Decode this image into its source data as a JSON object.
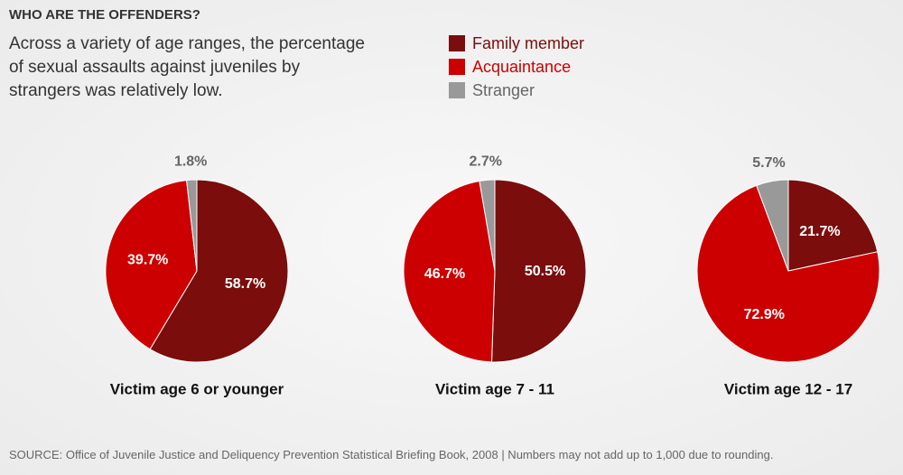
{
  "title": "WHO ARE THE OFFENDERS?",
  "subtitle": "Across a variety of age ranges, the percentage of sexual assaults against juveniles by strangers was relatively low.",
  "legend": {
    "categories": [
      "Family member",
      "Acquaintance",
      "Stranger"
    ],
    "colors": [
      "#7b0d0d",
      "#cc0000",
      "#999999"
    ]
  },
  "source": "SOURCE: Office of Juvenile Justice and Deliquency Prevention Statistical Briefing Book, 2008 | Numbers may not add up to 1,000 due to rounding.",
  "chart_data": [
    {
      "type": "pie",
      "title": "Victim age 6 or younger",
      "values": [
        58.7,
        39.7,
        1.8
      ],
      "value_labels": [
        "58.7%",
        "39.7%",
        "1.8%"
      ]
    },
    {
      "type": "pie",
      "title": "Victim age 7 - 11",
      "values": [
        50.5,
        46.7,
        2.7
      ],
      "value_labels": [
        "50.5%",
        "46.7%",
        "2.7%"
      ]
    },
    {
      "type": "pie",
      "title": "Victim age 12 - 17",
      "values": [
        21.7,
        72.9,
        5.7
      ],
      "value_labels": [
        "21.7%",
        "72.9%",
        "5.7%"
      ]
    }
  ]
}
